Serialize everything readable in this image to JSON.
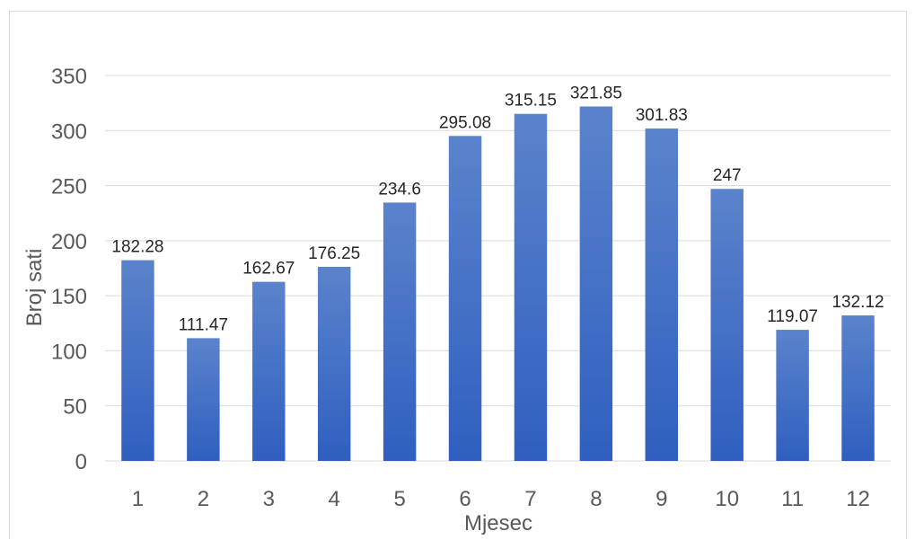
{
  "chart_data": {
    "type": "bar",
    "categories": [
      "1",
      "2",
      "3",
      "4",
      "5",
      "6",
      "7",
      "8",
      "9",
      "10",
      "11",
      "12"
    ],
    "values": [
      182.28,
      111.47,
      162.67,
      176.25,
      234.6,
      295.08,
      315.15,
      321.85,
      301.83,
      247,
      119.07,
      132.12
    ],
    "data_labels": [
      "182.28",
      "111.47",
      "162.67",
      "176.25",
      "234.6",
      "295.08",
      "315.15",
      "321.85",
      "301.83",
      "247",
      "119.07",
      "132.12"
    ],
    "yticks": [
      "0",
      "50",
      "100",
      "150",
      "200",
      "250",
      "300",
      "350"
    ],
    "xlabel": "Mjesec",
    "ylabel": "Broj sati",
    "ylim": [
      0,
      350
    ],
    "grid": true,
    "legend": "none",
    "colors": {
      "bar_top": "#5b83cc",
      "bar_bottom": "#2f5fbf",
      "grid": "#d9d9d9"
    }
  }
}
